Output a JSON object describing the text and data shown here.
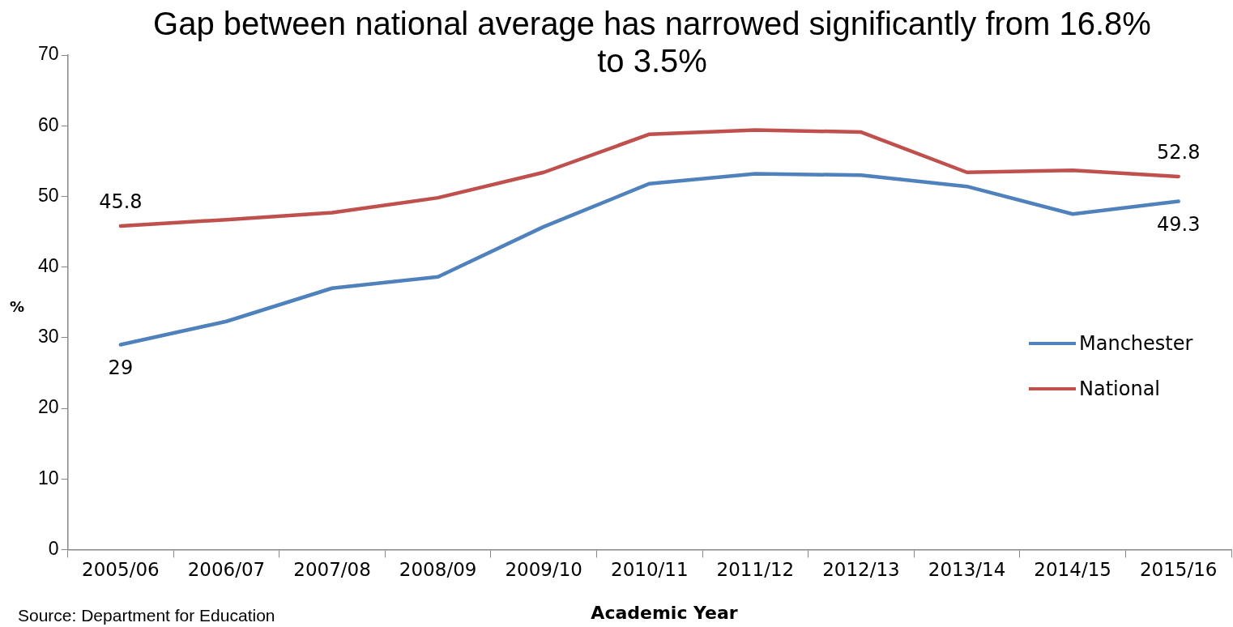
{
  "chart_data": {
    "type": "line",
    "title": "Gap between national average has narrowed significantly from 16.8% to 3.5%",
    "xlabel": "Academic Year",
    "ylabel": "%",
    "categories": [
      "2005/06",
      "2006/07",
      "2007/08",
      "2008/09",
      "2009/10",
      "2010/11",
      "2011/12",
      "2012/13",
      "2013/14",
      "2014/15",
      "2015/16"
    ],
    "series": [
      {
        "name": "Manchester",
        "color": "#4f81bd",
        "values": [
          29,
          32.3,
          37.0,
          38.6,
          45.7,
          51.8,
          53.2,
          53.0,
          51.4,
          47.5,
          49.3
        ],
        "value_labels": [
          "29",
          null,
          null,
          null,
          null,
          null,
          null,
          null,
          null,
          null,
          "49.3"
        ]
      },
      {
        "name": "National",
        "color": "#c0504d",
        "values": [
          45.8,
          46.7,
          47.7,
          49.8,
          53.4,
          58.8,
          59.4,
          59.1,
          53.4,
          53.7,
          52.8
        ],
        "value_labels": [
          "45.8",
          null,
          null,
          null,
          null,
          null,
          null,
          null,
          null,
          null,
          "52.8"
        ]
      }
    ],
    "ylim": [
      0,
      70
    ],
    "yticks": [
      0,
      10,
      20,
      30,
      40,
      50,
      60,
      70
    ],
    "grid": false,
    "legend": "right",
    "marker": "none",
    "line_style": "solid",
    "annotations": [
      "Source: Department for Education"
    ]
  }
}
